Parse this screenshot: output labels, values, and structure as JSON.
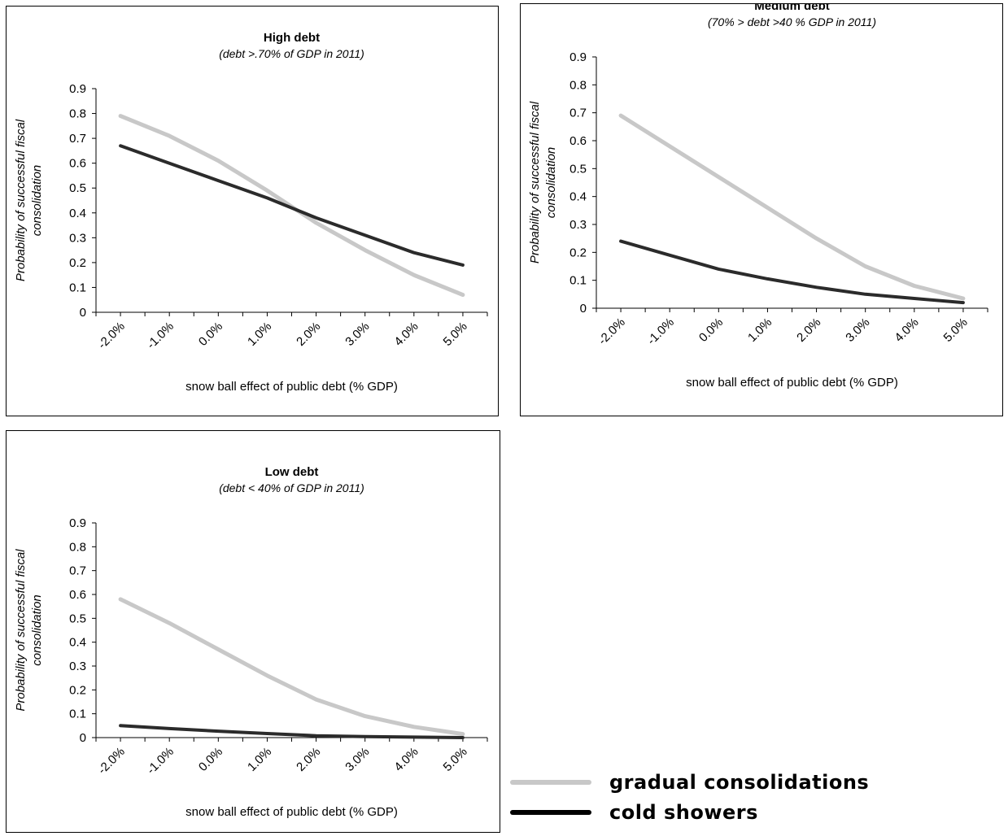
{
  "colors": {
    "gradual": "#c8c8c8",
    "cold": "#2b2b2b"
  },
  "chart_data": [
    {
      "type": "line",
      "title": "High debt",
      "subtitle": "(debt  >.70% of GDP in 2011)",
      "xlabel": "snow ball effect of public debt (% GDP)",
      "ylabel": [
        "Probability of successful fiscal",
        "consolidation"
      ],
      "ylim": [
        0,
        0.9
      ],
      "y_ticks": [
        "0",
        "0.1",
        "0.2",
        "0.3",
        "0.4",
        "0.5",
        "0.6",
        "0.7",
        "0.8",
        "0.9"
      ],
      "categories": [
        "-2.0%",
        "-1.0%",
        "0.0%",
        "1.0%",
        "2.0%",
        "3.0%",
        "4.0%",
        "5.0%"
      ],
      "series": [
        {
          "name": "gradual consolidations",
          "values": [
            0.79,
            0.71,
            0.61,
            0.49,
            0.36,
            0.25,
            0.15,
            0.07
          ]
        },
        {
          "name": "cold showers",
          "values": [
            0.67,
            0.6,
            0.53,
            0.46,
            0.38,
            0.31,
            0.24,
            0.19
          ]
        }
      ]
    },
    {
      "type": "line",
      "title": "Medium debt",
      "subtitle": "(70% > debt  >40 % GDP in  2011)",
      "xlabel": "snow ball effect of public debt  (% GDP)",
      "ylabel": [
        "Probability of successful fiscal",
        "consolidation"
      ],
      "ylim": [
        0,
        0.9
      ],
      "y_ticks": [
        "0",
        "0.1",
        "0.2",
        "0.3",
        "0.4",
        "0.5",
        "0.6",
        "0.7",
        "0.8",
        "0.9"
      ],
      "categories": [
        "-2.0%",
        "-1.0%",
        "0.0%",
        "1.0%",
        "2.0%",
        "3.0%",
        "4.0%",
        "5.0%"
      ],
      "series": [
        {
          "name": "gradual consolidations",
          "values": [
            0.69,
            0.58,
            0.47,
            0.36,
            0.25,
            0.15,
            0.08,
            0.035
          ]
        },
        {
          "name": "cold showers",
          "values": [
            0.24,
            0.19,
            0.14,
            0.105,
            0.075,
            0.05,
            0.035,
            0.02
          ]
        }
      ]
    },
    {
      "type": "line",
      "title": "Low debt",
      "subtitle": "(debt  < 40% of GDP in 2011)",
      "xlabel": "snow ball effect of public debt  (% GDP)",
      "ylabel": [
        "Probability of successful fiscal",
        "consolidation"
      ],
      "ylim": [
        0,
        0.9
      ],
      "y_ticks": [
        "0",
        "0.1",
        "0.2",
        "0.3",
        "0.4",
        "0.5",
        "0.6",
        "0.7",
        "0.8",
        "0.9"
      ],
      "categories": [
        "-2.0%",
        "-1.0%",
        "0.0%",
        "1.0%",
        "2.0%",
        "3.0%",
        "4.0%",
        "5.0%"
      ],
      "series": [
        {
          "name": "gradual consolidations",
          "values": [
            0.58,
            0.48,
            0.37,
            0.26,
            0.16,
            0.09,
            0.045,
            0.015
          ]
        },
        {
          "name": "cold showers",
          "values": [
            0.05,
            0.038,
            0.027,
            0.017,
            0.008,
            0.004,
            0.002,
            0.0
          ]
        }
      ]
    }
  ],
  "legend": {
    "items": [
      {
        "label": "gradual consolidations",
        "color": "#c8c8c8"
      },
      {
        "label": "cold showers",
        "color": "#2b2b2b"
      }
    ]
  }
}
